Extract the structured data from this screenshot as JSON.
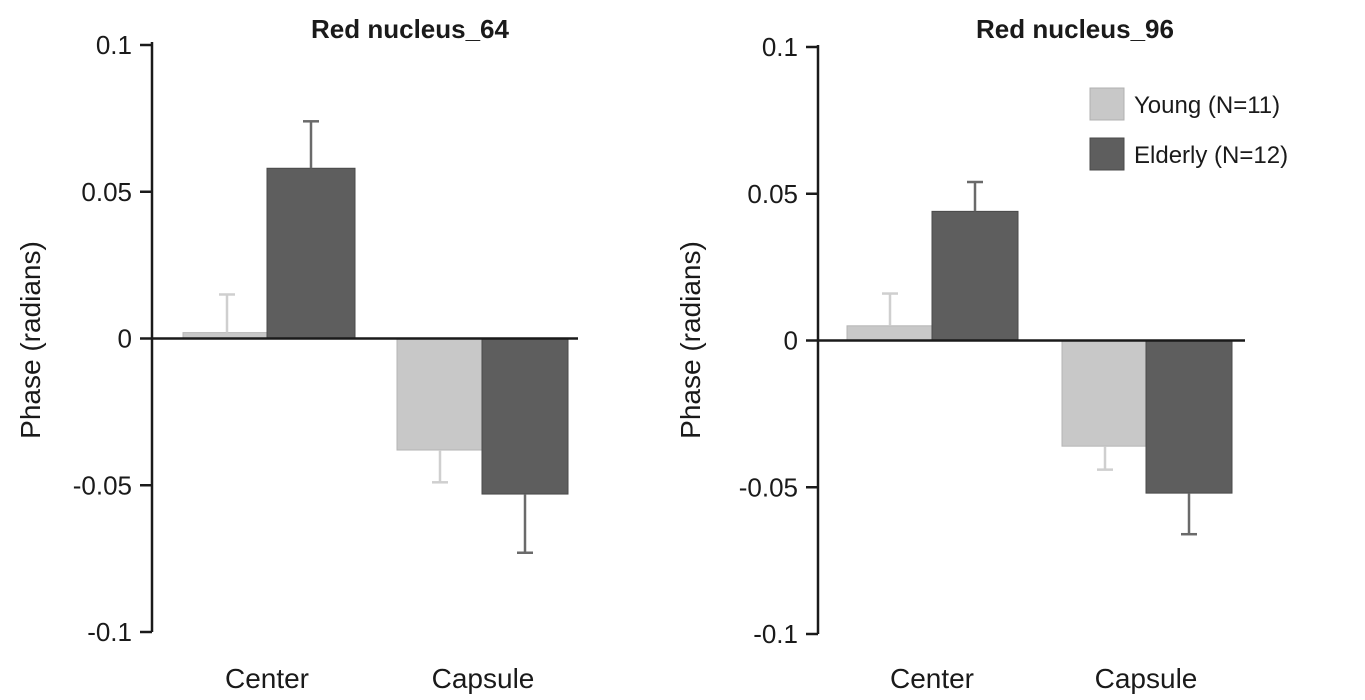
{
  "chart_data": [
    {
      "type": "bar",
      "title": "Red nucleus_64",
      "ylabel": "Phase  (radians)",
      "xlabel": "",
      "categories": [
        "Center",
        "Capsule"
      ],
      "ylim": [
        -0.1,
        0.1
      ],
      "yticks": [
        "0.1",
        "0.05",
        "0",
        "-0.05",
        "-0.1"
      ],
      "ytick_values": [
        0.1,
        0.05,
        0,
        -0.05,
        -0.1
      ],
      "series": [
        {
          "name": "Young (N=11)",
          "color": "#c8c8c8",
          "values": [
            0.002,
            -0.038
          ],
          "errors": [
            0.013,
            0.011
          ]
        },
        {
          "name": "Elderly (N=12)",
          "color": "#5e5e5e",
          "values": [
            0.058,
            -0.053
          ],
          "errors": [
            0.016,
            0.02
          ]
        }
      ],
      "legend": false
    },
    {
      "type": "bar",
      "title": "Red nucleus_96",
      "ylabel": "Phase  (radians)",
      "xlabel": "",
      "categories": [
        "Center",
        "Capsule"
      ],
      "ylim": [
        -0.1,
        0.1
      ],
      "yticks": [
        "0.1",
        "0.05",
        "0",
        "-0.05",
        "-0.1"
      ],
      "ytick_values": [
        0.1,
        0.05,
        0,
        -0.05,
        -0.1
      ],
      "series": [
        {
          "name": "Young (N=11)",
          "color": "#c8c8c8",
          "values": [
            0.005,
            -0.036
          ],
          "errors": [
            0.011,
            0.008
          ]
        },
        {
          "name": "Elderly (N=12)",
          "color": "#5e5e5e",
          "values": [
            0.044,
            -0.052
          ],
          "errors": [
            0.01,
            0.014
          ]
        }
      ],
      "legend": true,
      "legend_position": "top-right"
    }
  ],
  "legend": {
    "items": [
      {
        "label": "Young (N=11)",
        "color": "#c8c8c8"
      },
      {
        "label": "Elderly (N=12)",
        "color": "#5e5e5e"
      }
    ]
  }
}
